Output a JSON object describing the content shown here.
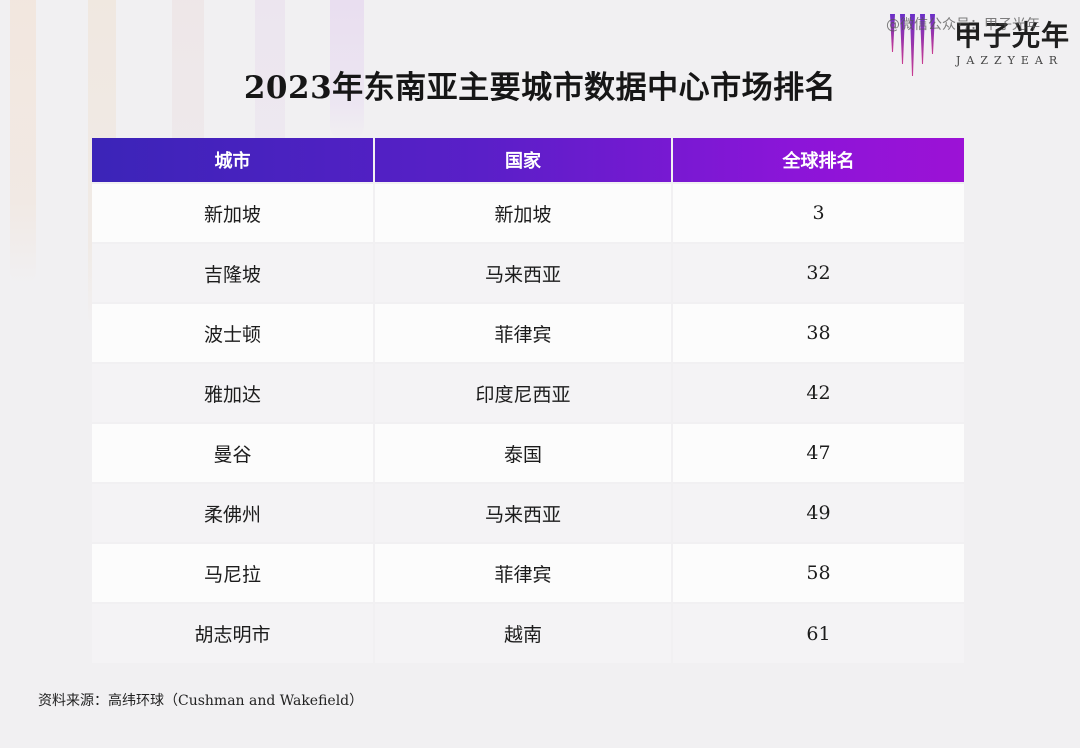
{
  "watermark": "@微信公众号：甲子光年",
  "logo": {
    "main": "甲子光年",
    "sub": "JAZZYEAR"
  },
  "chart_data": {
    "type": "table",
    "title": "2023年东南亚主要城市数据中心市场排名",
    "columns": [
      "城市",
      "国家",
      "全球排名"
    ],
    "rows": [
      [
        "新加坡",
        "新加坡",
        "3"
      ],
      [
        "吉隆坡",
        "马来西亚",
        "32"
      ],
      [
        "波士顿",
        "菲律宾",
        "38"
      ],
      [
        "雅加达",
        "印度尼西亚",
        "42"
      ],
      [
        "曼谷",
        "泰国",
        "47"
      ],
      [
        "柔佛州",
        "马来西亚",
        "49"
      ],
      [
        "马尼拉",
        "菲律宾",
        "58"
      ],
      [
        "胡志明市",
        "越南",
        "61"
      ]
    ]
  },
  "source": "资料来源：高纬环球（Cushman and Wakefield）",
  "colors": {
    "header_gradient_start": "#3b24b8",
    "header_gradient_end": "#9c12d6",
    "background": "#f1f0f2"
  }
}
